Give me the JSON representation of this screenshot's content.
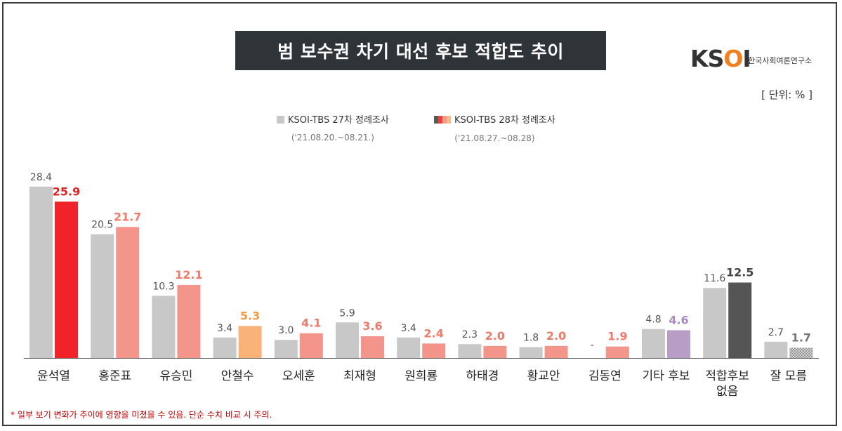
{
  "header": {
    "title": "범 보수권 차기 대선 후보 적합도 추이",
    "logo_mark_prefix": "KS",
    "logo_mark_o": "O",
    "logo_mark_suffix": "I",
    "logo_sub": "한국사회여론연구소"
  },
  "unit_label": "[ 단위: % ]",
  "legend": {
    "prev": {
      "label": "KSOI-TBS 27차 정례조사",
      "period": "('21.08.20.~08.21.)",
      "color": "#c8c8c8"
    },
    "curr": {
      "label": "KSOI-TBS 28차 정례조사",
      "period": "('21.08.27.~08.28)",
      "colors": [
        "#5a5a5a",
        "#e8443a",
        "#f59a8a",
        "#f9b98a"
      ]
    }
  },
  "footnote": "* 일부 보기 변화가 추이에 영향을 미쳤을 수 있음. 단순 수치 비교 시 주의.",
  "chart_data": {
    "type": "bar",
    "title": "범 보수권 차기 대선 후보 적합도 추이",
    "categories": [
      "윤석열",
      "홍준표",
      "유승민",
      "안철수",
      "오세훈",
      "최재형",
      "원희룡",
      "하태경",
      "황교안",
      "김동연",
      "기타 후보",
      "적합후보\n없음",
      "잘 모름"
    ],
    "series": [
      {
        "name": "KSOI-TBS 27차 정례조사",
        "values": [
          28.4,
          20.5,
          10.3,
          3.4,
          3.0,
          5.9,
          3.4,
          2.3,
          1.8,
          null,
          4.8,
          11.6,
          2.7
        ],
        "labels": [
          "28.4",
          "20.5",
          "10.3",
          "3.4",
          "3.0",
          "5.9",
          "3.4",
          "2.3",
          "1.8",
          "-",
          "4.8",
          "11.6",
          "2.7"
        ],
        "color": "#c8c8c8"
      },
      {
        "name": "KSOI-TBS 28차 정례조사",
        "values": [
          25.9,
          21.7,
          12.1,
          5.3,
          4.1,
          3.6,
          2.4,
          2.0,
          2.0,
          1.9,
          4.6,
          12.5,
          1.7
        ],
        "labels": [
          "25.9",
          "21.7",
          "12.1",
          "5.3",
          "4.1",
          "3.6",
          "2.4",
          "2.0",
          "2.0",
          "1.9",
          "4.6",
          "12.5",
          "1.7"
        ],
        "colors": [
          "#f0222a",
          "#f3958a",
          "#f3958a",
          "#f9b277",
          "#f3958a",
          "#f3958a",
          "#f3958a",
          "#f3958a",
          "#f3958a",
          "#f3958a",
          "#b89ec6",
          "#555555",
          "hatch"
        ],
        "label_colors": [
          "#e02020",
          "#f07a6a",
          "#f07a6a",
          "#f59a40",
          "#f07a6a",
          "#f07a6a",
          "#f07a6a",
          "#f07a6a",
          "#f07a6a",
          "#f07a6a",
          "#a98ac0",
          "#444444",
          "#777777"
        ]
      }
    ],
    "ylim": [
      0,
      30
    ],
    "grid": false,
    "legend_position": "top-center"
  }
}
